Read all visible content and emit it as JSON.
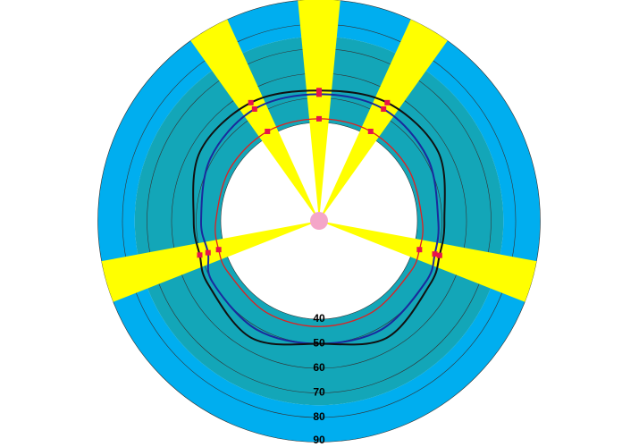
{
  "chart_data": {
    "type": "polar",
    "rlim": [
      0,
      90
    ],
    "rticks": [
      40,
      50,
      60,
      70,
      80,
      90
    ],
    "bands": [
      {
        "from": 40,
        "to": 75,
        "color": "#13a6b8"
      },
      {
        "from": 75,
        "to": 90,
        "color": "#00aeef"
      }
    ],
    "wedges": [
      0,
      30,
      106,
      254,
      330
    ],
    "wedge_width": 11,
    "wedge_color": "#ffff00",
    "theta": [
      0,
      30,
      60,
      90,
      106,
      120,
      150,
      180,
      210,
      240,
      254,
      270,
      300,
      330
    ],
    "series": [
      {
        "color": "#e02020",
        "values": [
          41.5,
          42,
          42,
          42,
          42.5,
          42.5,
          43,
          43,
          43,
          42.5,
          42.5,
          42,
          42,
          42
        ]
      },
      {
        "color": "#1a2a9c",
        "values": [
          51.5,
          52.5,
          51,
          48.5,
          49,
          50,
          51,
          50,
          51,
          50,
          47,
          48,
          51,
          52.5
        ]
      },
      {
        "color": "#111111",
        "values": [
          53,
          55.5,
          56,
          51,
          51,
          52,
          55,
          50,
          55,
          52,
          50.5,
          51,
          56,
          55.5
        ]
      }
    ],
    "marker_color": "#e8134a"
  }
}
